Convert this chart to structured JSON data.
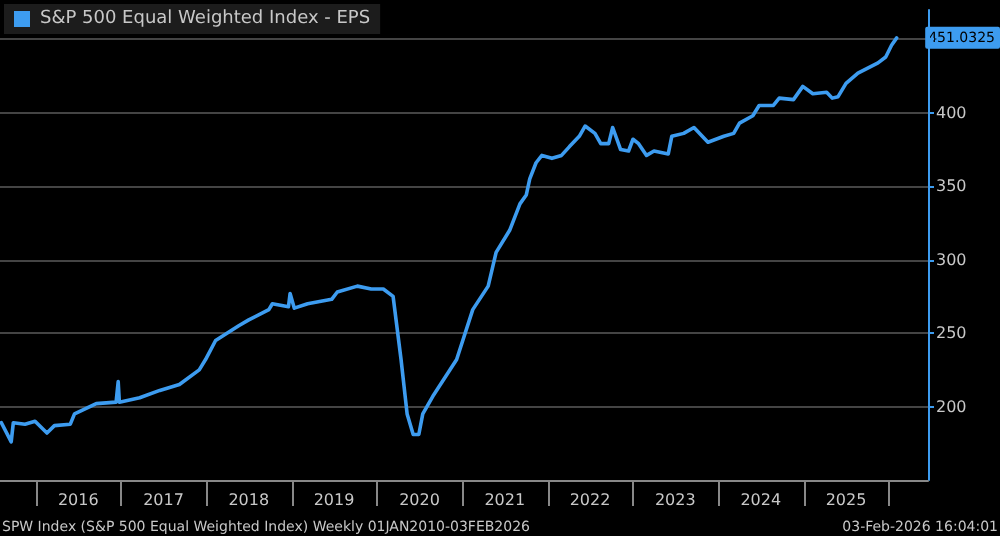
{
  "chart_data": {
    "type": "line",
    "legend": "top left",
    "grid": "y",
    "marker": "none",
    "line_style": "solid",
    "xlim": [
      "2015-08-01",
      "2026-06-17"
    ],
    "xticks": [
      {
        "value": "2016-01-01",
        "label": null
      },
      {
        "value": "2016-07-01",
        "label": "2016"
      },
      {
        "value": "2017-01-01",
        "label": null
      },
      {
        "value": "2017-07-01",
        "label": "2017"
      },
      {
        "value": "2018-01-01",
        "label": null
      },
      {
        "value": "2018-07-01",
        "label": "2018"
      },
      {
        "value": "2019-01-01",
        "label": null
      },
      {
        "value": "2019-07-01",
        "label": "2019"
      },
      {
        "value": "2020-01-01",
        "label": null
      },
      {
        "value": "2020-07-01",
        "label": "2020"
      },
      {
        "value": "2021-01-01",
        "label": null
      },
      {
        "value": "2021-07-01",
        "label": "2021"
      },
      {
        "value": "2022-01-01",
        "label": null
      },
      {
        "value": "2022-07-01",
        "label": "2022"
      },
      {
        "value": "2023-01-01",
        "label": null
      },
      {
        "value": "2023-07-01",
        "label": "2023"
      },
      {
        "value": "2024-01-01",
        "label": null
      },
      {
        "value": "2024-07-01",
        "label": "2024"
      },
      {
        "value": "2025-01-01",
        "label": null
      },
      {
        "value": "2025-07-01",
        "label": "2025"
      },
      {
        "value": "2026-01-01",
        "label": null
      }
    ],
    "ylim": [
      150,
      470
    ],
    "yticks": [
      200,
      250,
      300,
      350,
      400,
      {
        "value": 450,
        "label": null
      }
    ],
    "annotations": [
      "SPW Index (S&P 500 Equal Weighted Index) Weekly 01JAN2010-03FEB2026",
      "03-Feb-2026 16:04:01",
      {
        "text": "451.0325",
        "x": "2026-02-03",
        "y": 451.0325
      }
    ],
    "x": [
      "2015-08-07",
      "2015-09-18",
      "2015-09-27",
      "2015-11-16",
      "2015-12-29",
      "2016-02-18",
      "2016-03-21",
      "2016-05-28",
      "2016-06-15",
      "2016-09-16",
      "2016-12-10",
      "2016-12-19",
      "2016-12-24",
      "2017-03-21",
      "2017-06-15",
      "2017-09-07",
      "2017-12-01",
      "2017-12-28",
      "2018-02-09",
      "2018-05-19",
      "2018-07-01",
      "2018-09-25",
      "2018-10-10",
      "2018-12-18",
      "2018-12-25",
      "2019-01-12",
      "2019-03-10",
      "2019-06-21",
      "2019-07-15",
      "2019-10-09",
      "2019-12-07",
      "2020-01-28",
      "2020-03-10",
      "2020-04-13",
      "2020-05-09",
      "2020-06-04",
      "2020-06-28",
      "2020-07-15",
      "2020-08-27",
      "2020-12-07",
      "2021-02-14",
      "2021-04-21",
      "2021-05-25",
      "2021-07-22",
      "2021-09-04",
      "2021-10-01",
      "2021-10-16",
      "2021-11-12",
      "2021-12-07",
      "2022-01-19",
      "2022-03-01",
      "2022-04-04",
      "2022-05-16",
      "2022-06-10",
      "2022-07-22",
      "2022-08-16",
      "2022-09-19",
      "2022-10-06",
      "2022-11-09",
      "2022-12-13",
      "2023-01-01",
      "2023-01-25",
      "2023-02-28",
      "2023-04-01",
      "2023-06-01",
      "2023-06-16",
      "2023-08-06",
      "2023-09-19",
      "2023-11-18",
      "2024-01-25",
      "2024-03-07",
      "2024-04-01",
      "2024-05-28",
      "2024-06-24",
      "2024-08-24",
      "2024-09-18",
      "2024-11-18",
      "2024-12-28",
      "2025-02-09",
      "2025-04-09",
      "2025-05-03",
      "2025-05-28",
      "2025-07-01",
      "2025-08-21",
      "2025-11-15",
      "2025-12-18",
      "2026-01-12",
      "2026-02-03"
    ],
    "series": [
      {
        "name": "S&P 500 Equal Weighted Index - EPS",
        "color": "#3d9cf0",
        "values": [
          189,
          176,
          189,
          188,
          190,
          182,
          187,
          188,
          195,
          202,
          203,
          217,
          203,
          206,
          211,
          215,
          225,
          232,
          245,
          255,
          259,
          266,
          270,
          268,
          277,
          267,
          270,
          273,
          278,
          282,
          280,
          280,
          275,
          232,
          195,
          181,
          181,
          195,
          207,
          232,
          266,
          282,
          305,
          320,
          338,
          344,
          355,
          366,
          371,
          369,
          371,
          377,
          384,
          391,
          386,
          379,
          379,
          390,
          375,
          374,
          382,
          379,
          371,
          374,
          372,
          384,
          386,
          390,
          380,
          384,
          386,
          393,
          398,
          405,
          405,
          410,
          409,
          418,
          413,
          414,
          410,
          411,
          420,
          427,
          434,
          438,
          446,
          451.0325
        ]
      }
    ]
  }
}
